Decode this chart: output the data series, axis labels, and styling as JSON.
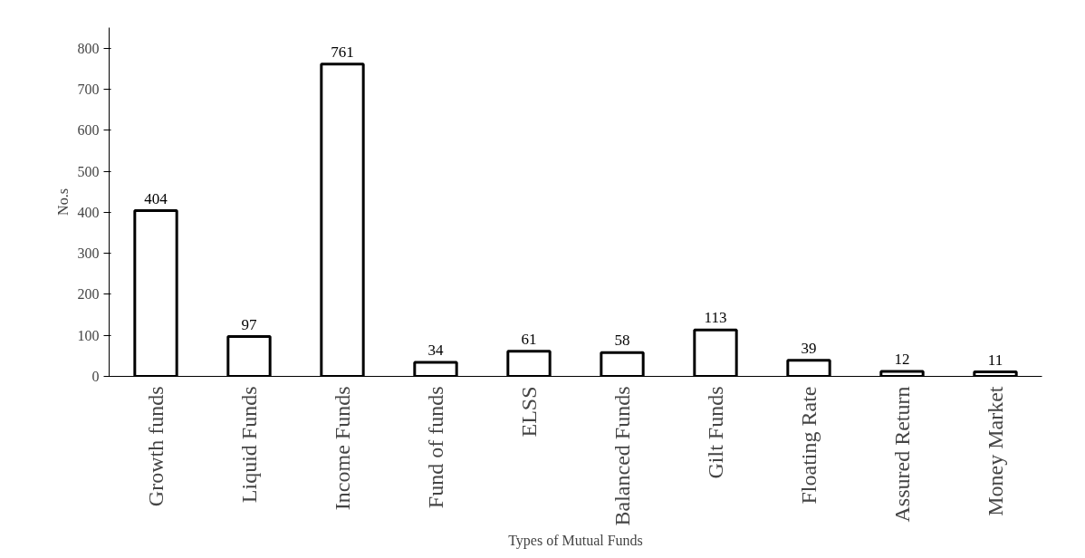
{
  "chart_data": {
    "type": "bar",
    "xlabel": "Types of Mutual Funds",
    "ylabel": "No.s",
    "categories": [
      "Growth funds",
      "Liquid Funds",
      "Income Funds",
      "Fund of funds",
      "ELSS",
      "Balanced Funds",
      "Gilt Funds",
      "Floating Rate",
      "Assured Return",
      "Money Market"
    ],
    "values": [
      404,
      97,
      761,
      34,
      61,
      58,
      113,
      39,
      12,
      11
    ],
    "color": "#ffffff",
    "ylim": [
      0,
      850
    ],
    "yticks": [
      0,
      100,
      200,
      300,
      400,
      500,
      600,
      700,
      800
    ],
    "grid": false,
    "data_labels": true
  }
}
